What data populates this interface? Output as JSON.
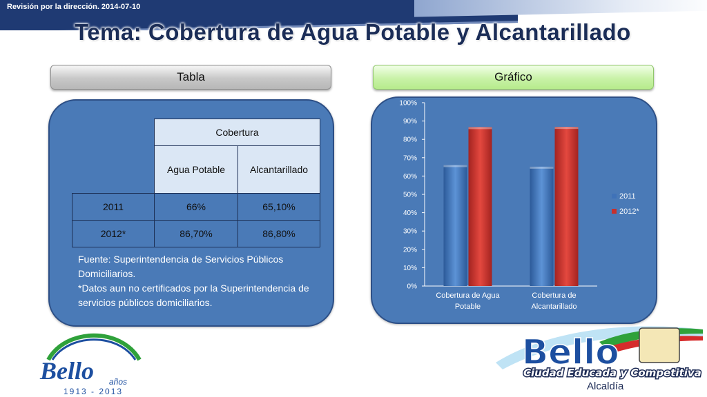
{
  "header": {
    "note": "Revisión por la dirección. 2014-07-10",
    "title": "Tema: Cobertura de Agua Potable y Alcantarillado"
  },
  "tabs": {
    "tabla": "Tabla",
    "grafico": "Gráfico"
  },
  "table": {
    "group_header": "Cobertura",
    "columns": [
      "Agua Potable",
      "Alcantarillado"
    ],
    "rows": [
      {
        "label": "2011",
        "values": [
          "66%",
          "65,10%"
        ]
      },
      {
        "label": "2012*",
        "values": [
          "86,70%",
          "86,80%"
        ]
      }
    ]
  },
  "notes": {
    "line1": "Fuente: Superintendencia de Servicios Públicos Domiciliarios.",
    "line2": "*Datos aun no certificados por la Superintendencia de servicios públicos domiciliarios."
  },
  "chart_data": {
    "type": "bar",
    "categories": [
      [
        "Cobertura de Agua",
        "Potable"
      ],
      [
        "Cobertura de",
        "Alcantarillado"
      ]
    ],
    "series": [
      {
        "name": "2011",
        "values": [
          66,
          65.1
        ],
        "color": "#3f72b8"
      },
      {
        "name": "2012*",
        "values": [
          86.7,
          86.8
        ],
        "color": "#c8302c"
      }
    ],
    "ylim": [
      0,
      100
    ],
    "yticks": [
      0,
      10,
      20,
      30,
      40,
      50,
      60,
      70,
      80,
      90,
      100
    ],
    "ytick_suffix": "%",
    "legend_position": "right",
    "grid": false
  },
  "logos": {
    "left": {
      "main": "Bello",
      "years_word": "años",
      "years": "1913 - 2013"
    },
    "right": {
      "main": "Bello",
      "slogan": "Ciudad Educada y Competitiva",
      "sub": "Alcaldía"
    }
  },
  "colors": {
    "navy": "#1f3a73",
    "panel": "#4a7ab7",
    "table_light": "#dbe7f5",
    "bar_2011": "#3f72b8",
    "bar_2012": "#c8302c",
    "logo_blue": "#1d4fa0",
    "logo_green": "#2fa13a",
    "logo_red": "#d62b2b"
  }
}
